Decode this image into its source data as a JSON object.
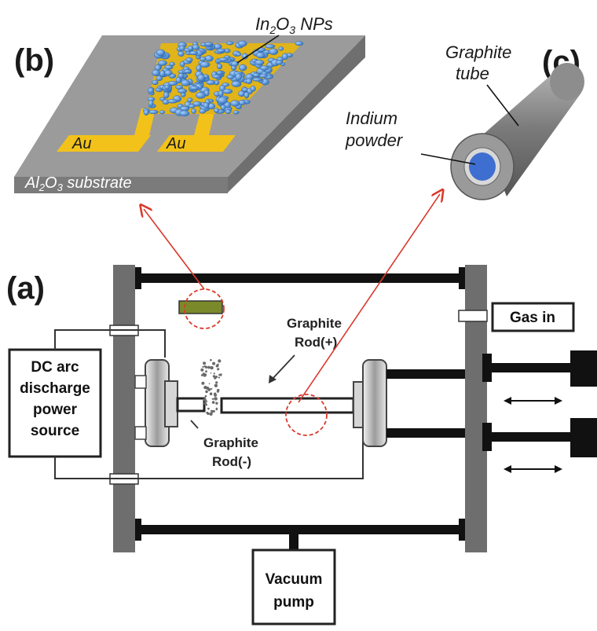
{
  "panels": {
    "b": {
      "letter": "(b)",
      "nps_label_pre": "In",
      "nps_label_sub1": "2",
      "nps_label_mid": "O",
      "nps_label_sub2": "3",
      "nps_label_post": " NPs",
      "electrode_left": "Au",
      "electrode_right": "Au",
      "substrate_pre": "Al",
      "substrate_sub1": "2",
      "substrate_mid": "O",
      "substrate_sub2": "3",
      "substrate_post": " substrate"
    },
    "c": {
      "letter": "(c)",
      "tube_label_line1": "Graphite",
      "tube_label_line2": "tube",
      "powder_label_line1": "Indium",
      "powder_label_line2": "powder"
    },
    "a": {
      "letter": "(a)",
      "power_line1": "DC arc",
      "power_line2": "discharge",
      "power_line3": "power",
      "power_line4": "source",
      "gas_in": "Gas in",
      "rod_plus_line1": "Graphite",
      "rod_plus_line2": "Rod(+)",
      "rod_minus_line1": "Graphite",
      "rod_minus_line2": "Rod(-)",
      "pump_line1": "Vacuum",
      "pump_line2": "pump"
    }
  },
  "colors": {
    "substrate_top": "#9a9a9a",
    "gold": "#f2c21a",
    "nanoparticle": "#4e8fd6",
    "tube": "#8a8a8a",
    "indium": "#3e6fd0",
    "arrow_red": "#d83a2c",
    "frame": "#6e6e6e",
    "sample_holder": "#7a8a2a"
  }
}
